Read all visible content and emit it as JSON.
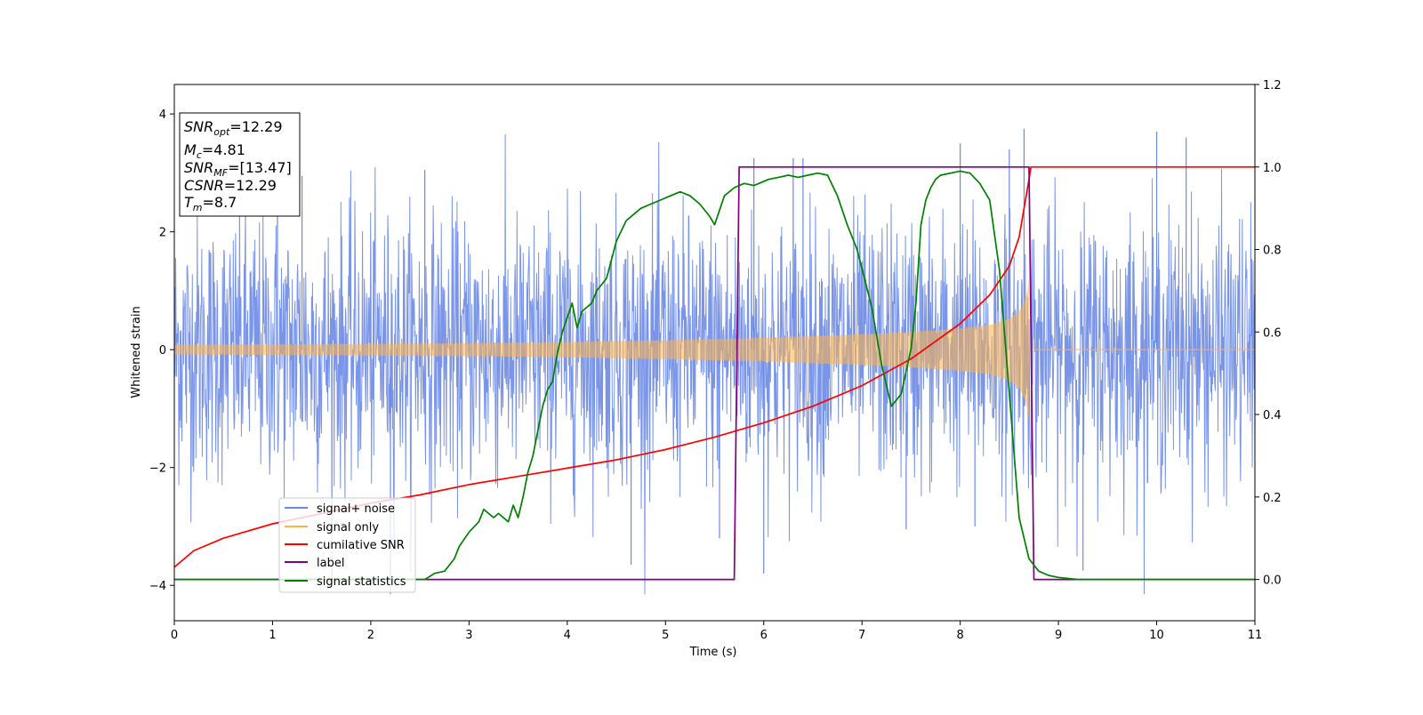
{
  "chart_data": {
    "type": "line",
    "xlabel": "Time (s)",
    "ylabel": "Whitened strain",
    "xlim": [
      0,
      11
    ],
    "ylim": [
      -4.6,
      4.5
    ],
    "y2lim": [
      -0.1,
      1.2
    ],
    "x_ticks": [
      "0",
      "1",
      "2",
      "3",
      "4",
      "5",
      "6",
      "7",
      "8",
      "9",
      "10",
      "11"
    ],
    "y_ticks": [
      "4",
      "2",
      "0",
      "−2",
      "−4"
    ],
    "y2_ticks": [
      "1.2",
      "1.0",
      "0.8",
      "0.6",
      "0.4",
      "0.2",
      "0.0"
    ],
    "grid": false,
    "legend_position": "lower-left",
    "legend": [
      "signal+ noise",
      "signal only",
      "cumilative SNR",
      "label",
      "signal statistics"
    ],
    "info_box": {
      "snr_opt": "=12.29",
      "mc": "=4.81",
      "snr_mf": "=[13.47]",
      "csnr": "=12.29",
      "tm": "=8.7"
    },
    "colors": {
      "noise": "#6b8ae6",
      "signal": "#ffb347",
      "cumulative_snr": "#ff0000",
      "label": "#800080",
      "statistics": "#008000"
    },
    "series": [
      {
        "name": "signal+ noise",
        "axis": "left",
        "description_values": {
          "min": -4.15,
          "max": 3.75,
          "typical_amplitude": 1.8
        },
        "spikes": [
          [
            1.05,
            2.95
          ],
          [
            1.3,
            2.95
          ],
          [
            2.2,
            -4.15
          ],
          [
            2.55,
            3.05
          ],
          [
            4.65,
            -3.65
          ],
          [
            5.55,
            -3.2
          ],
          [
            5.9,
            3.25
          ],
          [
            6.0,
            -3.8
          ],
          [
            6.3,
            3.25
          ],
          [
            6.4,
            3.25
          ],
          [
            7.45,
            -3.05
          ],
          [
            8.0,
            3.5
          ],
          [
            8.15,
            -3.0
          ],
          [
            8.5,
            3.4
          ],
          [
            8.65,
            3.75
          ],
          [
            9.25,
            -3.75
          ],
          [
            10.0,
            3.7
          ],
          [
            10.3,
            3.6
          ]
        ]
      },
      {
        "name": "signal only",
        "axis": "left",
        "envelope": [
          [
            0,
            0.08
          ],
          [
            1,
            0.09
          ],
          [
            2,
            0.1
          ],
          [
            3,
            0.11
          ],
          [
            4,
            0.13
          ],
          [
            5,
            0.16
          ],
          [
            6,
            0.2
          ],
          [
            7,
            0.26
          ],
          [
            7.5,
            0.3
          ],
          [
            8,
            0.36
          ],
          [
            8.3,
            0.42
          ],
          [
            8.5,
            0.52
          ],
          [
            8.6,
            0.65
          ],
          [
            8.66,
            0.85
          ],
          [
            8.69,
            1.05
          ],
          [
            8.7,
            1.2
          ],
          [
            8.72,
            0
          ]
        ]
      },
      {
        "name": "cumilative SNR",
        "axis": "right",
        "x": [
          0,
          0.2,
          0.5,
          1,
          1.5,
          2,
          2.5,
          3,
          3.5,
          4,
          4.5,
          5,
          5.5,
          6,
          6.5,
          7,
          7.5,
          8,
          8.3,
          8.5,
          8.6,
          8.7,
          8.72,
          11
        ],
        "y": [
          0.03,
          0.07,
          0.1,
          0.135,
          0.16,
          0.185,
          0.205,
          0.23,
          0.25,
          0.27,
          0.29,
          0.315,
          0.345,
          0.38,
          0.42,
          0.47,
          0.535,
          0.62,
          0.69,
          0.76,
          0.83,
          0.97,
          1.0,
          1.0
        ]
      },
      {
        "name": "label",
        "axis": "right",
        "x": [
          0,
          5.7,
          5.75,
          8.7,
          8.75,
          11
        ],
        "y": [
          0,
          0,
          1,
          1,
          0,
          0
        ]
      },
      {
        "name": "signal statistics",
        "axis": "right",
        "x": [
          0,
          2.55,
          2.65,
          2.75,
          2.85,
          2.9,
          3.0,
          3.1,
          3.15,
          3.25,
          3.3,
          3.4,
          3.45,
          3.5,
          3.55,
          3.6,
          3.65,
          3.7,
          3.75,
          3.8,
          3.85,
          3.9,
          3.95,
          4.05,
          4.1,
          4.15,
          4.25,
          4.3,
          4.4,
          4.5,
          4.6,
          4.7,
          4.75,
          4.85,
          4.95,
          5.05,
          5.15,
          5.25,
          5.35,
          5.45,
          5.5,
          5.6,
          5.7,
          5.8,
          5.9,
          5.95,
          6.05,
          6.15,
          6.25,
          6.35,
          6.45,
          6.55,
          6.65,
          6.75,
          6.85,
          6.95,
          7.1,
          7.2,
          7.3,
          7.4,
          7.5,
          7.55,
          7.6,
          7.65,
          7.7,
          7.75,
          7.8,
          7.9,
          8.0,
          8.1,
          8.2,
          8.3,
          8.4,
          8.5,
          8.6,
          8.7,
          8.8,
          8.9,
          9.0,
          9.2,
          11
        ],
        "y": [
          0.0,
          0.0,
          0.015,
          0.02,
          0.05,
          0.08,
          0.115,
          0.14,
          0.17,
          0.15,
          0.16,
          0.14,
          0.18,
          0.15,
          0.2,
          0.26,
          0.3,
          0.36,
          0.42,
          0.46,
          0.48,
          0.55,
          0.6,
          0.67,
          0.61,
          0.65,
          0.67,
          0.7,
          0.73,
          0.82,
          0.87,
          0.89,
          0.9,
          0.91,
          0.92,
          0.93,
          0.94,
          0.93,
          0.91,
          0.88,
          0.86,
          0.93,
          0.95,
          0.96,
          0.955,
          0.96,
          0.97,
          0.975,
          0.98,
          0.975,
          0.98,
          0.985,
          0.98,
          0.93,
          0.86,
          0.8,
          0.66,
          0.52,
          0.42,
          0.45,
          0.56,
          0.67,
          0.86,
          0.92,
          0.95,
          0.97,
          0.98,
          0.985,
          0.99,
          0.985,
          0.96,
          0.92,
          0.75,
          0.45,
          0.15,
          0.05,
          0.02,
          0.01,
          0.005,
          0.0,
          0.0
        ]
      }
    ]
  }
}
